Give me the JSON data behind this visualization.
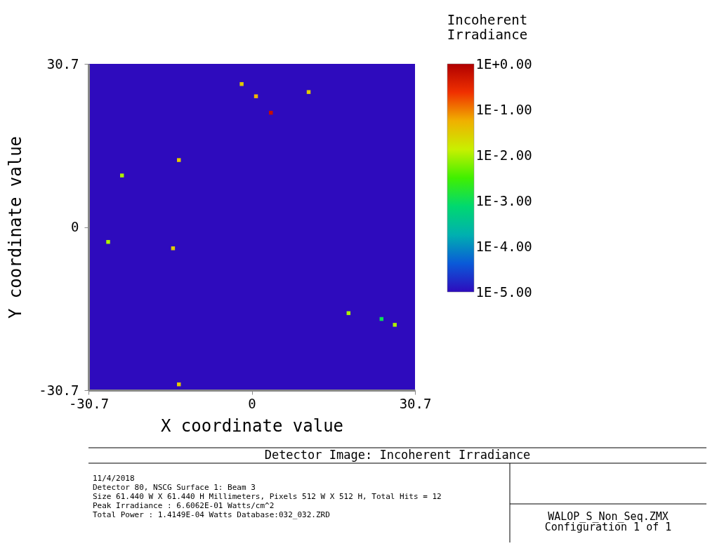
{
  "chart_data": {
    "type": "scatter",
    "title": "Detector Image: Incoherent Irradiance",
    "xlabel": "X coordinate value",
    "ylabel": "Y coordinate value",
    "clabel": "Incoherent Irradiance",
    "x": [
      -1.9,
      -13.7,
      -24.4,
      0.8,
      10.7,
      3.6,
      -27.0,
      -14.8,
      -13.7,
      18.2,
      24.4,
      26.9
    ],
    "values": [
      26.9,
      12.6,
      9.7,
      24.6,
      25.4,
      21.5,
      -2.8,
      -4.0,
      -29.6,
      -16.2,
      -17.3,
      -18.4
    ],
    "cvalues": [
      -1.5,
      -1.5,
      -2,
      -1.3,
      -1.5,
      -0.2,
      -2,
      -1.5,
      -1.5,
      -2,
      -3,
      -2
    ],
    "clim": [
      -5,
      0
    ],
    "cticks": [
      {
        "value": 0,
        "label": "1E+0.00"
      },
      {
        "value": -1,
        "label": "1E-1.00"
      },
      {
        "value": -2,
        "label": "1E-2.00"
      },
      {
        "value": -3,
        "label": "1E-3.00"
      },
      {
        "value": -4,
        "label": "1E-4.00"
      },
      {
        "value": -5,
        "label": "1E-5.00"
      }
    ],
    "xlim": [
      -30.7,
      30.7
    ],
    "ylim": [
      -30.7,
      30.7
    ],
    "xticks": [
      -30.7,
      0,
      30.7
    ],
    "yticks": [
      -30.7,
      0,
      30.7
    ],
    "marker": "square",
    "grid": false,
    "annotations": [
      "11/4/2018",
      "Detector 80, NSCG Surface 1: Beam 3",
      "Size 61.440 W X 61.440 H Millimeters, Pixels 512 W X 512 H, Total Hits = 12",
      "Peak Irradiance : 6.6062E-01 Watts/cm^2",
      "Total Power     : 1.4149E-04 Watts Database:032_032.ZRD",
      "WALOP_S_Non_Seq.ZMX",
      "Configuration 1 of 1"
    ]
  }
}
